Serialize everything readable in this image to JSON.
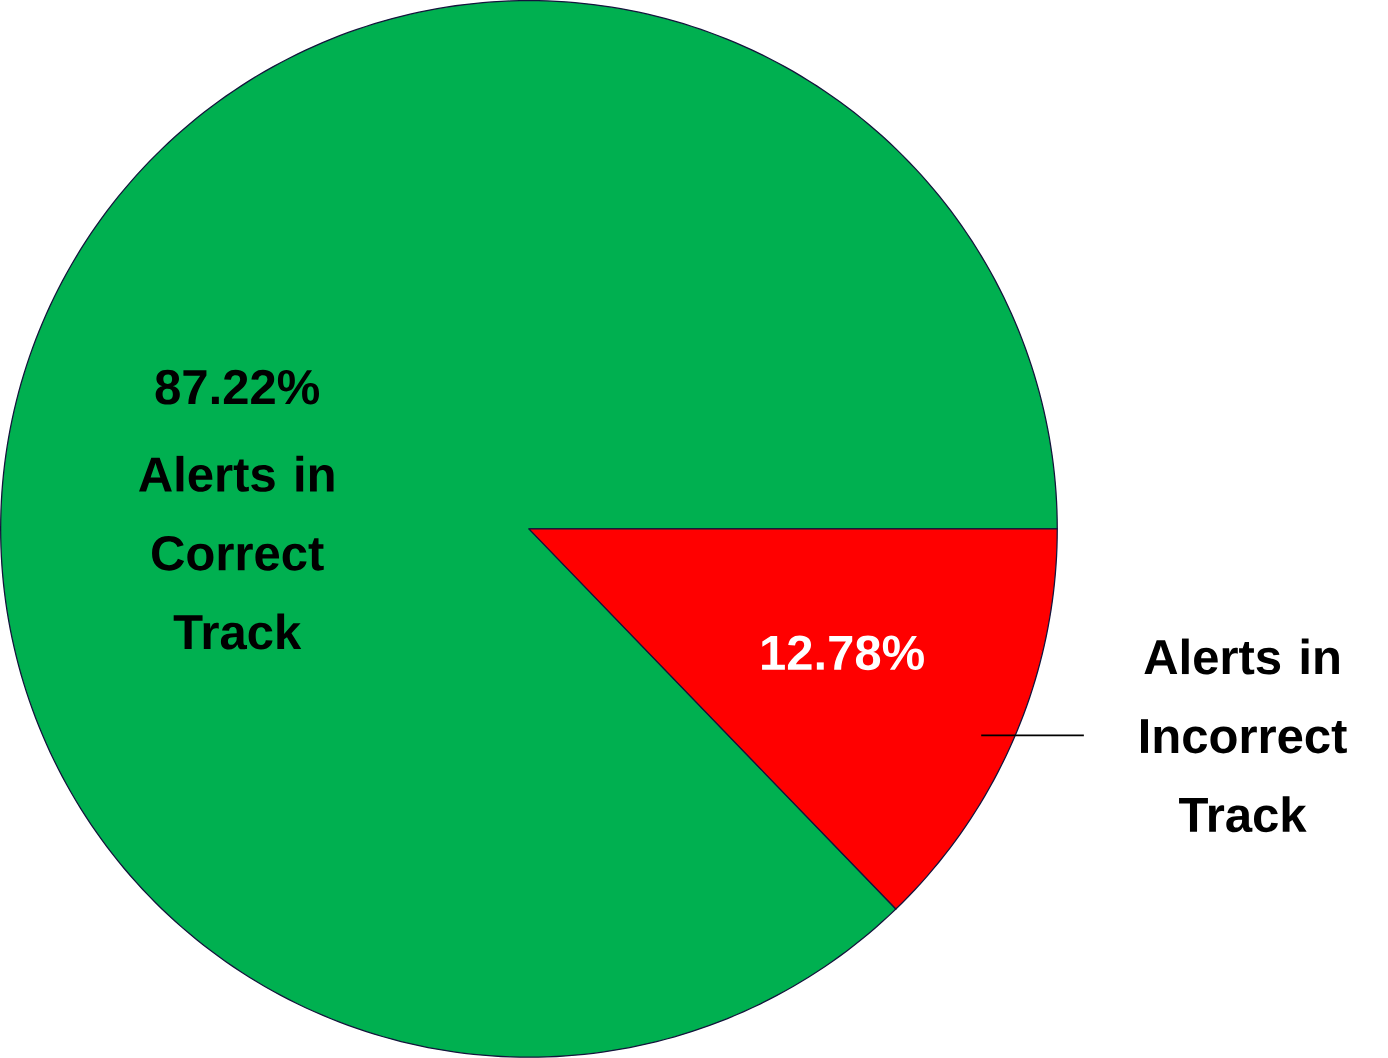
{
  "chart_data": {
    "type": "pie",
    "categories": [
      "Alerts in Correct Track",
      "Alerts in Incorrect Track"
    ],
    "values": [
      87.22,
      12.78
    ],
    "value_labels": [
      "87.22%",
      "12.78%"
    ],
    "colors": [
      "#00b050",
      "#ff0000"
    ]
  }
}
